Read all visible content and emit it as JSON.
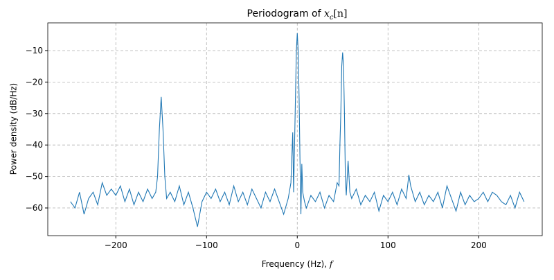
{
  "chart_data": {
    "type": "line",
    "title": [
      "Periodogram of",
      "x",
      "c",
      "[n]"
    ],
    "xlabel": [
      "Frequency (Hz),",
      "f"
    ],
    "ylabel": "Power density (dB/Hz)",
    "xlim": [
      -275,
      270
    ],
    "ylim": [
      -68.8,
      -1.2
    ],
    "xticks": [
      {
        "value": -200,
        "label": "−200"
      },
      {
        "value": -100,
        "label": "−100"
      },
      0,
      100,
      200
    ],
    "yticks": [
      {
        "value": -60,
        "label": "−60"
      },
      {
        "value": -50,
        "label": "−50"
      },
      {
        "value": -40,
        "label": "−40"
      },
      {
        "value": -30,
        "label": "−30"
      },
      {
        "value": -20,
        "label": "−20"
      },
      {
        "value": -10,
        "label": "−10"
      }
    ],
    "grid": true,
    "series": [
      {
        "color": "#1f77b4",
        "x": [
          -250,
          -245,
          -240,
          -235,
          -230,
          -225,
          -220,
          -215,
          -210,
          -205,
          -200,
          -195,
          -190,
          -185,
          -180,
          -175,
          -170,
          -165,
          -160,
          -156,
          -154,
          -152,
          -150,
          -148,
          -146,
          -144,
          -140,
          -135,
          -130,
          -125,
          -120,
          -115,
          -110,
          -105,
          -100,
          -95,
          -90,
          -85,
          -80,
          -75,
          -70,
          -65,
          -60,
          -55,
          -50,
          -45,
          -40,
          -35,
          -30,
          -25,
          -20,
          -15,
          -10,
          -7,
          -5,
          -4,
          -3,
          -2,
          -1,
          0,
          1,
          2,
          3,
          4,
          5,
          6,
          8,
          10,
          15,
          20,
          25,
          30,
          35,
          40,
          44,
          46,
          47,
          48,
          49,
          50,
          51,
          52,
          53,
          54,
          56,
          58,
          60,
          65,
          70,
          75,
          80,
          85,
          90,
          95,
          100,
          105,
          110,
          115,
          120,
          123,
          125,
          130,
          135,
          140,
          145,
          150,
          155,
          160,
          165,
          170,
          175,
          180,
          185,
          190,
          195,
          200,
          205,
          210,
          215,
          220,
          225,
          230,
          235,
          240,
          245,
          250
        ],
        "values": [
          -58,
          -60,
          -55,
          -62,
          -57,
          -55,
          -59,
          -52,
          -56,
          -54,
          -56,
          -53,
          -58,
          -54,
          -59,
          -55,
          -58,
          -54,
          -57,
          -55,
          -50,
          -35,
          -24.7,
          -35,
          -50,
          -57,
          -55,
          -58,
          -53,
          -59,
          -55,
          -60,
          -66,
          -58,
          -55,
          -57,
          -54,
          -58,
          -55,
          -59,
          -53,
          -58,
          -55,
          -59,
          -54,
          -57,
          -60,
          -55,
          -58,
          -54,
          -58,
          -62,
          -57,
          -52,
          -36,
          -55,
          -40,
          -25,
          -10,
          -4.5,
          -10,
          -25,
          -45,
          -62,
          -46,
          -55,
          -58,
          -60,
          -56,
          -58,
          -55,
          -60,
          -56,
          -58,
          -52,
          -53,
          -40,
          -30,
          -15,
          -10.6,
          -15,
          -30,
          -50,
          -56,
          -45,
          -55,
          -57,
          -54,
          -59,
          -56,
          -58,
          -55,
          -61,
          -56,
          -58,
          -55,
          -59,
          -54,
          -57,
          -49.5,
          -53,
          -58,
          -55,
          -59,
          -56,
          -58,
          -55,
          -60,
          -53,
          -57,
          -61,
          -55,
          -59,
          -56,
          -58,
          -57,
          -55,
          -58,
          -55,
          -56,
          -58,
          -59,
          -56,
          -60,
          -55,
          -58
        ]
      }
    ]
  }
}
